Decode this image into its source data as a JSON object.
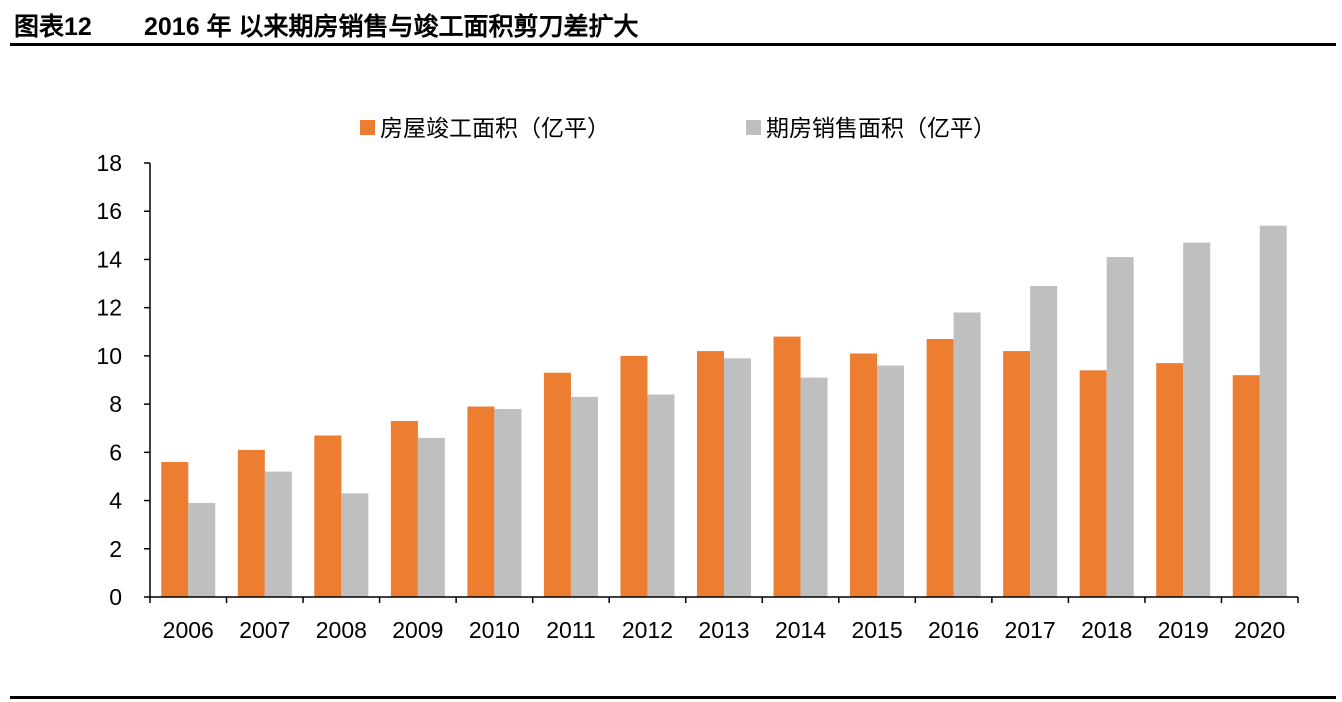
{
  "header": {
    "figure_label": "图表12",
    "title": "2016 年 以来期房销售与竣工面积剪刀差扩大"
  },
  "colors": {
    "completed": "#ED7D31",
    "presale": "#BFBFBF",
    "axis": "#000000"
  },
  "chart_data": {
    "type": "bar",
    "categories": [
      "2006",
      "2007",
      "2008",
      "2009",
      "2010",
      "2011",
      "2012",
      "2013",
      "2014",
      "2015",
      "2016",
      "2017",
      "2018",
      "2019",
      "2020"
    ],
    "series": [
      {
        "name": "房屋竣工面积（亿平）",
        "color": "#ED7D31",
        "values": [
          5.6,
          6.1,
          6.7,
          7.3,
          7.9,
          9.3,
          10.0,
          10.2,
          10.8,
          10.1,
          10.7,
          10.2,
          9.4,
          9.7,
          9.2
        ]
      },
      {
        "name": "期房销售面积（亿平）",
        "color": "#BFBFBF",
        "values": [
          3.9,
          5.2,
          4.3,
          6.6,
          7.8,
          8.3,
          8.4,
          9.9,
          9.1,
          9.6,
          11.8,
          12.9,
          14.1,
          14.7,
          15.4
        ]
      }
    ],
    "ylim": [
      0,
      18
    ],
    "yticks": [
      "0",
      "2",
      "4",
      "6",
      "8",
      "10",
      "12",
      "14",
      "16",
      "18"
    ],
    "xlabel": "",
    "ylabel": "",
    "grid": false,
    "legend_position": "top-center"
  }
}
